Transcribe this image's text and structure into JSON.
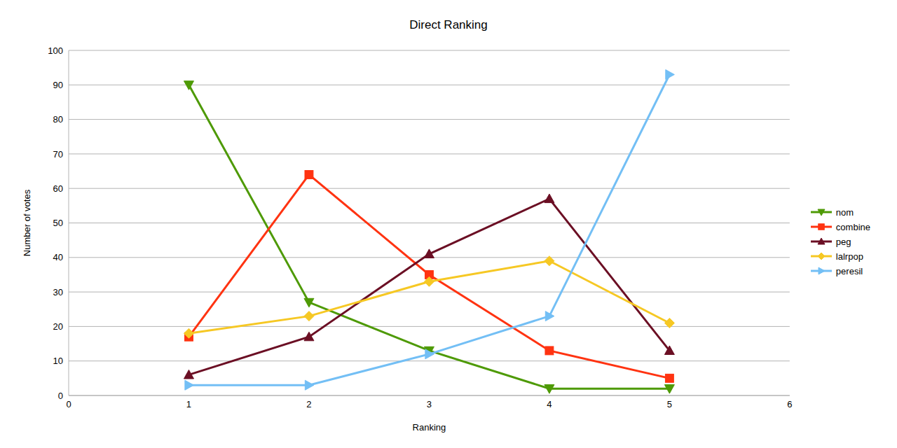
{
  "chart_data": {
    "type": "line",
    "title": "Direct Ranking",
    "x_label": "Ranking",
    "y_label": "Number of votes",
    "x": [
      1,
      2,
      3,
      4,
      5
    ],
    "series": [
      {
        "name": "nom",
        "color": "#4e9a06",
        "marker": "triangle-down",
        "values": [
          90,
          27,
          13,
          2,
          2
        ]
      },
      {
        "name": "combine",
        "color": "#ff3311",
        "marker": "square",
        "values": [
          17,
          64,
          35,
          13,
          5
        ]
      },
      {
        "name": "peg",
        "color": "#6b0f24",
        "marker": "triangle-up",
        "values": [
          6,
          17,
          41,
          57,
          13
        ]
      },
      {
        "name": "lalrpop",
        "color": "#f6c824",
        "marker": "diamond",
        "values": [
          18,
          23,
          33,
          39,
          21
        ]
      },
      {
        "name": "peresil",
        "color": "#73bff5",
        "marker": "triangle-right",
        "values": [
          3,
          3,
          12,
          23,
          93
        ]
      }
    ],
    "xlim": [
      0,
      6
    ],
    "xticks": [
      0,
      1,
      2,
      3,
      4,
      5,
      6
    ],
    "ylim": [
      0,
      100
    ],
    "yticks": [
      0,
      10,
      20,
      30,
      40,
      50,
      60,
      70,
      80,
      90,
      100
    ],
    "grid": true,
    "legend": "right"
  }
}
